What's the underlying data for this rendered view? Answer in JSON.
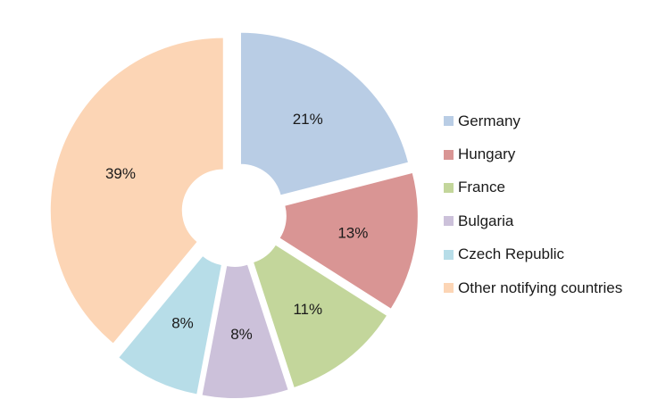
{
  "chart_data": {
    "type": "pie",
    "variant": "exploded-donut",
    "title": "",
    "legend_position": "right",
    "slices": [
      {
        "name": "Germany",
        "value": 21,
        "label": "21%",
        "color": "#b9cde5"
      },
      {
        "name": "Hungary",
        "value": 13,
        "label": "13%",
        "color": "#d99594"
      },
      {
        "name": "France",
        "value": 11,
        "label": "11%",
        "color": "#c3d69b"
      },
      {
        "name": "Bulgaria",
        "value": 8,
        "label": "8%",
        "color": "#ccc1da"
      },
      {
        "name": "Czech Republic",
        "value": 8,
        "label": "8%",
        "color": "#b7dde8"
      },
      {
        "name": "Other notifying countries",
        "value": 39,
        "label": "39%",
        "color": "#fcd5b5"
      }
    ]
  }
}
